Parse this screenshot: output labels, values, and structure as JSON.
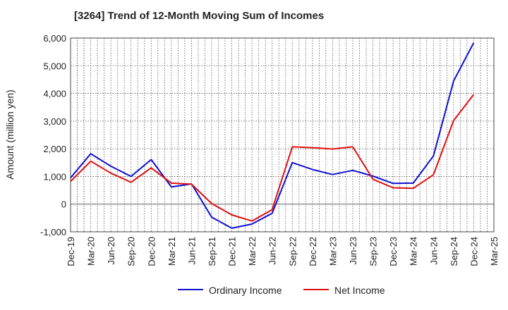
{
  "chart_data": {
    "type": "line",
    "title": "[3264]  Trend of 12-Month Moving Sum of Incomes",
    "xlabel": "",
    "ylabel": "Amount (million yen)",
    "ylim": [
      -1000,
      6000
    ],
    "yticks": [
      -1000,
      0,
      1000,
      2000,
      3000,
      4000,
      5000,
      6000
    ],
    "ytick_labels": [
      "-1,000",
      "0",
      "1,000",
      "2,000",
      "3,000",
      "4,000",
      "5,000",
      "6,000"
    ],
    "grid": true,
    "legend_position": "bottom",
    "x_categories": [
      "Dec-19",
      "Mar-20",
      "Jun-20",
      "Sep-20",
      "Dec-20",
      "Mar-21",
      "Jun-21",
      "Sep-21",
      "Dec-21",
      "Mar-22",
      "Jun-22",
      "Sep-22",
      "Dec-22",
      "Mar-23",
      "Jun-23",
      "Sep-23",
      "Dec-23",
      "Mar-24",
      "Jun-24",
      "Sep-24",
      "Dec-24",
      "Mar-25"
    ],
    "series": [
      {
        "name": "Ordinary Income",
        "color": "#1010d0",
        "values": [
          950,
          1820,
          1370,
          1000,
          1610,
          620,
          730,
          -470,
          -870,
          -720,
          -330,
          1500,
          1250,
          1070,
          1220,
          1010,
          750,
          760,
          1740,
          4450,
          5830,
          null
        ]
      },
      {
        "name": "Net Income",
        "color": "#e01010",
        "values": [
          820,
          1550,
          1120,
          790,
          1310,
          760,
          720,
          20,
          -390,
          -610,
          -200,
          2070,
          2040,
          1990,
          2070,
          900,
          590,
          570,
          1060,
          3020,
          3960,
          null
        ]
      }
    ]
  }
}
